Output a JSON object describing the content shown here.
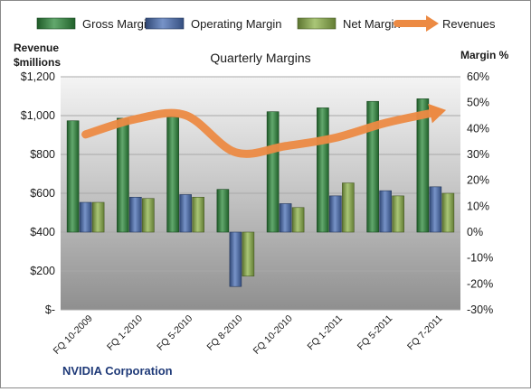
{
  "chart_data": {
    "type": "bar",
    "title": "Quarterly Margins",
    "left_axis_title_line1": "Revenue",
    "left_axis_title_line2": "$millions",
    "right_axis_title": "Margin %",
    "footer": "NVIDIA Corporation",
    "categories": [
      "FQ 10-2009",
      "FQ 1-2010",
      "FQ 5-2010",
      "FQ 8-2010",
      "FQ 10-2010",
      "FQ 1-2011",
      "FQ 5-2011",
      "FQ 7-2011"
    ],
    "series": [
      {
        "name": "Gross Margin",
        "kind": "bar",
        "axis": "right",
        "color": "#2e8b3c",
        "values": [
          43,
          44,
          44.5,
          16.5,
          46.5,
          48,
          50.5,
          51.5
        ]
      },
      {
        "name": "Operating Margin",
        "kind": "bar",
        "axis": "right",
        "color": "#4a6fb5",
        "values": [
          11.5,
          13.5,
          14.5,
          -21,
          11,
          14,
          16,
          17.5
        ]
      },
      {
        "name": "Net Margin",
        "kind": "bar",
        "axis": "right",
        "color": "#8db34a",
        "values": [
          11.5,
          13,
          13.5,
          -17,
          9.5,
          19,
          14,
          15
        ]
      },
      {
        "name": "Revenues",
        "kind": "line",
        "axis": "left",
        "color": "#ec8a43",
        "values": [
          903,
          982,
          1002,
          811,
          843,
          886,
          962,
          1017
        ]
      }
    ],
    "left_axis": {
      "min": 0,
      "max": 1200,
      "step": 200,
      "tick_labels": [
        "$-",
        "$200",
        "$400",
        "$600",
        "$800",
        "$1,000",
        "$1,200"
      ]
    },
    "right_axis": {
      "min": -30,
      "max": 60,
      "step": 10,
      "tick_labels": [
        "-30%",
        "-20%",
        "-10%",
        "0%",
        "10%",
        "20%",
        "30%",
        "40%",
        "50%",
        "60%"
      ]
    },
    "legend_position": "top",
    "grid": true
  }
}
